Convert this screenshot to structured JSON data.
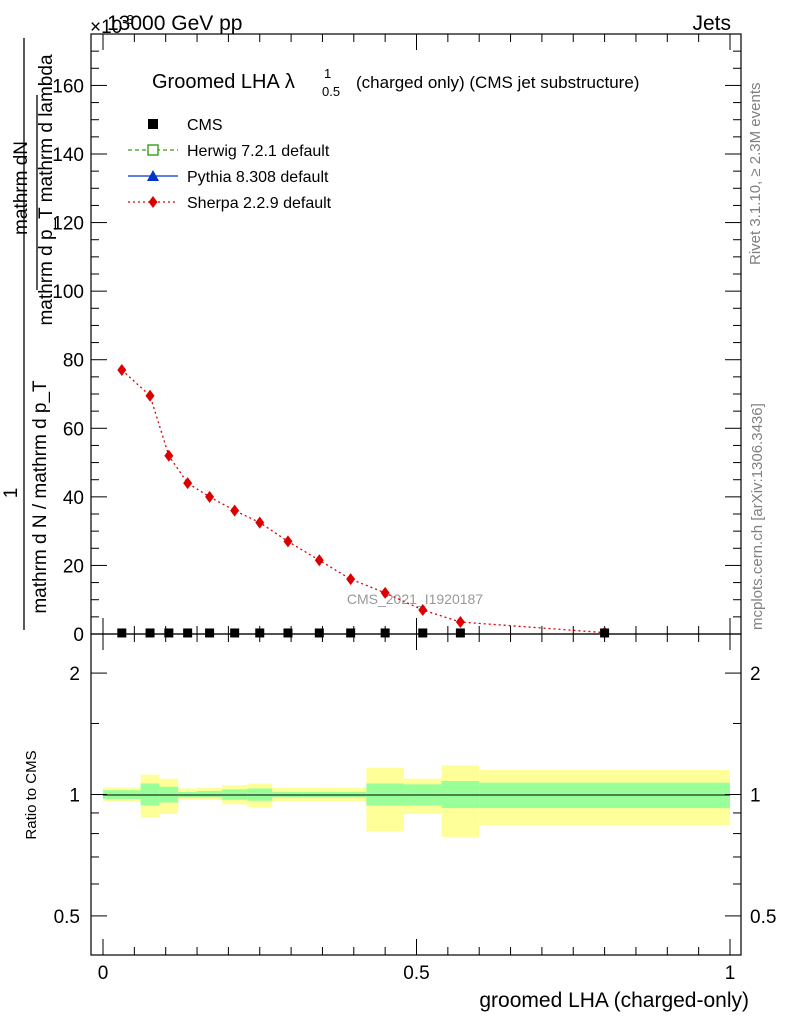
{
  "header": {
    "left": "13000 GeV pp",
    "right": "Jets",
    "exponent": "×10",
    "exponent_power": "-3"
  },
  "side_labels": {
    "rivet": "Rivet 3.1.10, ≥ 2.3M events",
    "mcplots": "mcplots.cern.ch [arXiv:1306.3436]"
  },
  "watermark": "CMS_2021_I1920187",
  "chart_data": {
    "type": "line",
    "title": {
      "main": "Groomed LHA",
      "lambda": "λ",
      "sub": "0.5",
      "sup": "1",
      "suffix": "(charged only) (CMS jet substructure)"
    },
    "ylabel": {
      "numerator_top": "mathrm dN",
      "denominator_top": "mathrm d p_T mathrm d lambda",
      "numerator_one": "1",
      "denominator_left": "mathrm d N / mathrm d p_T"
    },
    "xlabel": "groomed LHA (charged-only)",
    "ratio_ylabel": "Ratio to CMS",
    "xlim": [
      -0.02,
      1.02
    ],
    "ylim": [
      0,
      175
    ],
    "ratio_ylim": [
      0.4,
      2.5
    ],
    "y_scale_factor": "1e-3",
    "ratio_scale": "log",
    "x_ticks": [
      "0",
      "0.5",
      "1"
    ],
    "y_ticks": [
      "0",
      "20",
      "40",
      "60",
      "80",
      "100",
      "120",
      "140",
      "160"
    ],
    "ratio_ticks": [
      "0.5",
      "1",
      "2"
    ],
    "legend_position": "top-left",
    "legend": [
      {
        "name": "CMS",
        "marker": "filled-square",
        "color": "#000000"
      },
      {
        "name": "Herwig 7.2.1 default",
        "marker": "open-square",
        "color": "#3a9a1a"
      },
      {
        "name": "Pythia 8.308 default",
        "marker": "triangle",
        "color": "#0033cc"
      },
      {
        "name": "Sherpa 2.2.9 default",
        "marker": "diamond",
        "color": "#dd0000"
      }
    ],
    "bins": [
      [
        0.0,
        0.06
      ],
      [
        0.06,
        0.09
      ],
      [
        0.09,
        0.12
      ],
      [
        0.12,
        0.15
      ],
      [
        0.15,
        0.19
      ],
      [
        0.19,
        0.23
      ],
      [
        0.23,
        0.27
      ],
      [
        0.27,
        0.32
      ],
      [
        0.32,
        0.37
      ],
      [
        0.37,
        0.42
      ],
      [
        0.42,
        0.48
      ],
      [
        0.48,
        0.54
      ],
      [
        0.54,
        0.6
      ],
      [
        0.6,
        1.0
      ]
    ],
    "series": [
      {
        "name": "CMS",
        "x": [
          0.03,
          0.075,
          0.105,
          0.135,
          0.17,
          0.21,
          0.25,
          0.295,
          0.345,
          0.395,
          0.45,
          0.51,
          0.57,
          0.8
        ],
        "y": [
          0.3,
          0.3,
          0.3,
          0.3,
          0.3,
          0.3,
          0.3,
          0.3,
          0.3,
          0.3,
          0.3,
          0.3,
          0.3,
          0.3
        ]
      },
      {
        "name": "Sherpa 2.2.9 default",
        "x": [
          0.03,
          0.075,
          0.105,
          0.135,
          0.17,
          0.21,
          0.25,
          0.295,
          0.345,
          0.395,
          0.45,
          0.51,
          0.57,
          0.8
        ],
        "y": [
          77,
          69.5,
          52,
          44,
          40,
          36,
          32.5,
          27,
          21.5,
          16,
          12,
          7,
          3.5,
          0.4
        ]
      }
    ],
    "ratio_bands": {
      "stat_low": [
        0.975,
        0.94,
        0.955,
        0.985,
        0.985,
        0.97,
        0.965,
        0.985,
        0.985,
        0.985,
        0.94,
        0.94,
        0.925,
        0.925
      ],
      "stat_high": [
        1.025,
        1.065,
        1.045,
        1.015,
        1.02,
        1.03,
        1.035,
        1.015,
        1.015,
        1.015,
        1.065,
        1.06,
        1.08,
        1.07
      ],
      "syst_low": [
        0.96,
        0.875,
        0.895,
        0.97,
        0.97,
        0.945,
        0.93,
        0.96,
        0.96,
        0.96,
        0.81,
        0.895,
        0.785,
        0.84
      ],
      "syst_high": [
        1.04,
        1.12,
        1.095,
        1.035,
        1.04,
        1.055,
        1.065,
        1.04,
        1.04,
        1.04,
        1.165,
        1.095,
        1.18,
        1.15
      ]
    },
    "colors": {
      "stat": "#99ff99",
      "syst": "#ffff99",
      "sherpa": "#dd0000",
      "herwig": "#3a9a1a",
      "pythia": "#0033cc",
      "cms": "#000000"
    }
  }
}
